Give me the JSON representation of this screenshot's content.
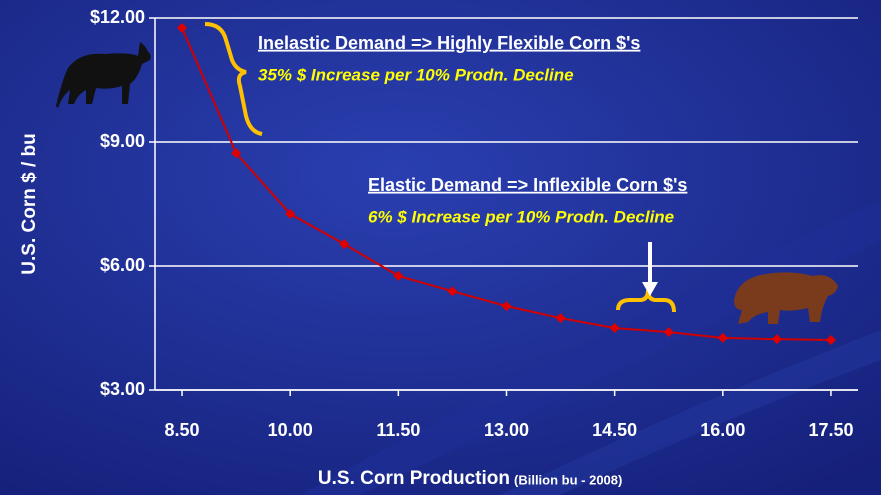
{
  "chart_data": {
    "type": "line",
    "x_label": "U.S. Corn Production",
    "x_label_note": "(Billion bu - 2008)",
    "y_label": "U.S. Corn $ / bu",
    "x": [
      8.5,
      9.25,
      10.0,
      10.75,
      11.5,
      12.25,
      13.0,
      13.75,
      14.5,
      15.25,
      16.0,
      16.75,
      17.5
    ],
    "values": [
      11.76,
      8.73,
      7.26,
      6.53,
      5.76,
      5.39,
      5.03,
      4.74,
      4.5,
      4.4,
      4.26,
      4.23,
      4.21
    ],
    "color": "#e00000",
    "xlim": [
      8.125,
      17.875
    ],
    "ylim": [
      3,
      12
    ],
    "xticks": [
      {
        "value": 8.5,
        "label": "8.50"
      },
      {
        "value": 10,
        "label": "10.00"
      },
      {
        "value": 11.5,
        "label": "11.50"
      },
      {
        "value": 13,
        "label": "13.00"
      },
      {
        "value": 14.5,
        "label": "14.50"
      },
      {
        "value": 16,
        "label": "16.00"
      },
      {
        "value": 17.5,
        "label": "17.50"
      }
    ],
    "yticks": [
      {
        "value": 3,
        "label": "$3.00"
      },
      {
        "value": 6,
        "label": "$6.00"
      },
      {
        "value": 9,
        "label": "$9.00"
      },
      {
        "value": 12,
        "label": "$12.00"
      }
    ],
    "grid": true,
    "annotations": [
      {
        "title": "Inelastic Demand => Highly Flexible Corn $'s",
        "subtitle": "35% $ Increase per 10% Prodn. Decline"
      },
      {
        "title": "Elastic Demand => Inflexible Corn $'s",
        "subtitle": "6% $ Increase per 10% Prodn. Decline"
      }
    ]
  }
}
